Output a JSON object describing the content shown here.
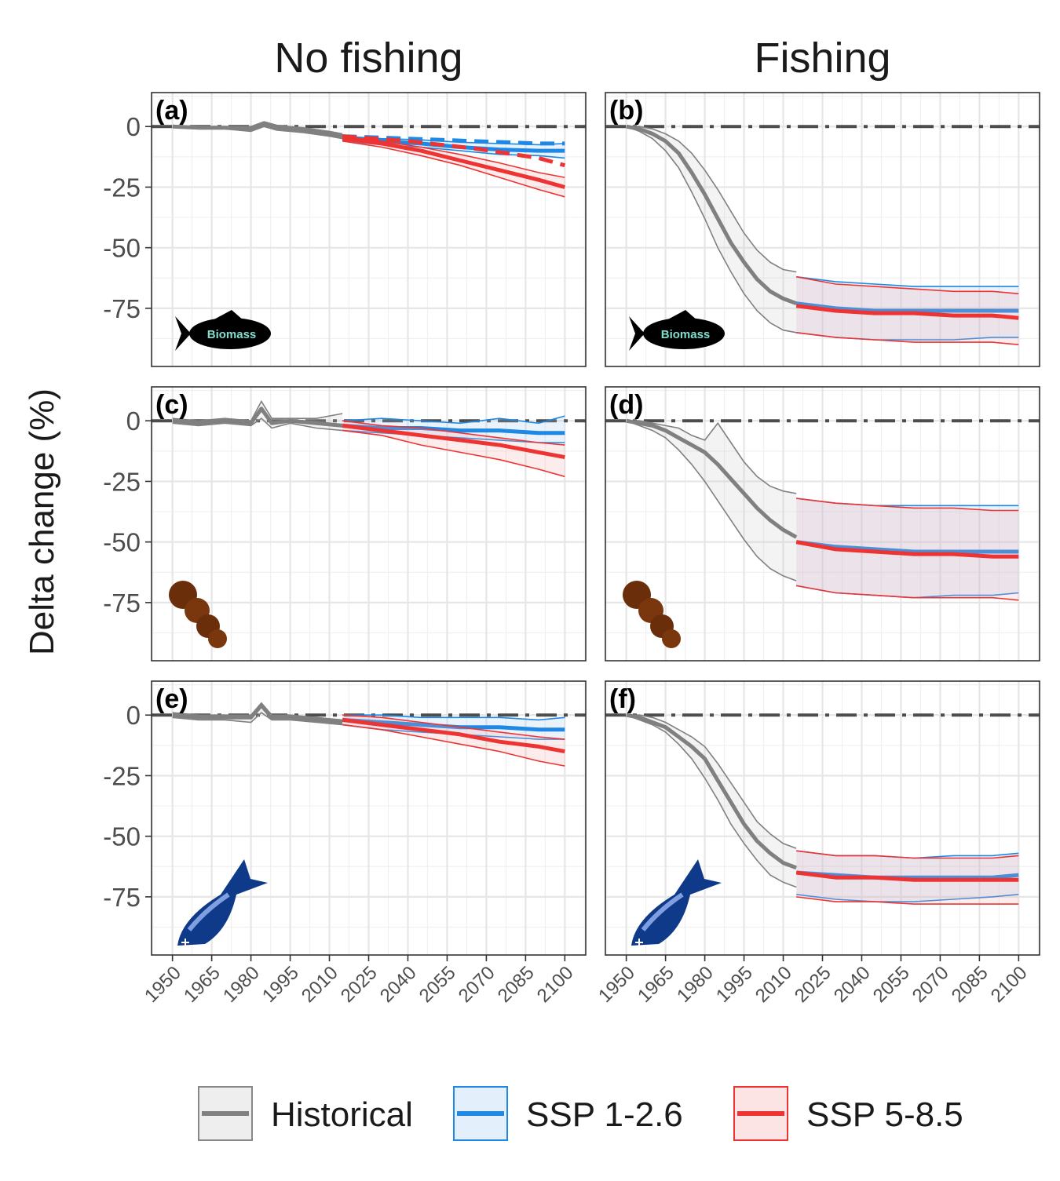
{
  "column_titles": [
    "No fishing",
    "Fishing"
  ],
  "ylabel": "Delta change (%)",
  "legend": {
    "position": "bottom",
    "items": [
      {
        "label": "Historical",
        "line": "#808080",
        "fill": "#eeeeee"
      },
      {
        "label": "SSP 1-2.6",
        "line": "#1e88e5",
        "fill": "#e3f0fc"
      },
      {
        "label": "SSP 5-8.5",
        "line": "#ee3333",
        "fill": "#fde4e4"
      }
    ]
  },
  "icon_text": "Biomass",
  "chart_data": {
    "type": "line",
    "grid": true,
    "x_ticks": [
      1950,
      1965,
      1980,
      1995,
      2010,
      2025,
      2040,
      2055,
      2070,
      2085,
      2100
    ],
    "y_ticks": [
      0,
      -25,
      -50,
      -75
    ],
    "y_tick_labels": [
      "0",
      "-25",
      "-50",
      "-75"
    ],
    "xlim": [
      1942,
      2108
    ],
    "ylim": [
      -99,
      14
    ],
    "reference_line": 0,
    "panels": [
      {
        "label": "(a)",
        "column": 0,
        "row": 0,
        "icon": "fish-silhouette-icon",
        "historical": {
          "x": [
            1950,
            1960,
            1970,
            1980,
            1985,
            1990,
            2000,
            2010,
            2015
          ],
          "mean": [
            0,
            -0.5,
            -0.5,
            -1,
            1,
            -0.5,
            -1.5,
            -3,
            -4
          ],
          "lower": [
            0,
            -1,
            -1,
            -2,
            0,
            -1.5,
            -2.5,
            -4,
            -5
          ],
          "upper": [
            0,
            0,
            0,
            0,
            2,
            0.5,
            -0.5,
            -2,
            -3
          ]
        },
        "ssp126": {
          "x": [
            2015,
            2030,
            2045,
            2060,
            2075,
            2090,
            2100
          ],
          "mean": [
            -5,
            -6,
            -7,
            -8.5,
            -9.5,
            -10,
            -10
          ],
          "lower": [
            -6,
            -7.5,
            -8.5,
            -10,
            -11.5,
            -12,
            -13
          ],
          "upper": [
            -4,
            -5,
            -5.5,
            -6.5,
            -7,
            -7.5,
            -7
          ],
          "dashed_x": [
            2015,
            2040,
            2065,
            2090,
            2100
          ],
          "dashed": [
            -4,
            -5,
            -6,
            -7,
            -7
          ]
        },
        "ssp585": {
          "x": [
            2015,
            2030,
            2045,
            2060,
            2075,
            2090,
            2100
          ],
          "mean": [
            -5,
            -7,
            -10,
            -14,
            -18,
            -22,
            -25
          ],
          "lower": [
            -6,
            -8.5,
            -12,
            -16,
            -21,
            -26,
            -29
          ],
          "upper": [
            -4,
            -6,
            -8.5,
            -11.5,
            -15,
            -19,
            -21
          ],
          "dashed_x": [
            2015,
            2040,
            2065,
            2090,
            2100
          ],
          "dashed": [
            -4,
            -6,
            -9,
            -13,
            -16
          ]
        }
      },
      {
        "label": "(b)",
        "column": 1,
        "row": 0,
        "icon": "fish-silhouette-icon",
        "historical": {
          "x": [
            1950,
            1955,
            1960,
            1965,
            1970,
            1975,
            1980,
            1985,
            1990,
            1995,
            2000,
            2005,
            2010,
            2015
          ],
          "mean": [
            0,
            -1,
            -3,
            -6,
            -11,
            -19,
            -28,
            -38,
            -48,
            -56,
            -63,
            -68,
            -71,
            -73
          ],
          "lower": [
            0,
            -2,
            -5,
            -10,
            -17,
            -27,
            -38,
            -50,
            -60,
            -69,
            -76,
            -81,
            -84,
            -85
          ],
          "upper": [
            0,
            0,
            -1,
            -3,
            -6,
            -11,
            -18,
            -26,
            -35,
            -44,
            -51,
            -56,
            -59,
            -60
          ]
        },
        "ssp126": {
          "x": [
            2015,
            2030,
            2045,
            2060,
            2075,
            2090,
            2100
          ],
          "mean": [
            -73,
            -75,
            -76,
            -76,
            -76,
            -76,
            -76
          ],
          "lower": [
            -85,
            -87,
            -88,
            -88,
            -88,
            -87,
            -87
          ],
          "upper": [
            -62,
            -64,
            -65,
            -66,
            -66,
            -66,
            -66
          ]
        },
        "ssp585": {
          "x": [
            2015,
            2030,
            2045,
            2060,
            2075,
            2090,
            2100
          ],
          "mean": [
            -74,
            -76,
            -77,
            -77,
            -78,
            -78,
            -79
          ],
          "lower": [
            -85,
            -87,
            -88,
            -89,
            -89,
            -89,
            -90
          ],
          "upper": [
            -62,
            -65,
            -66,
            -67,
            -68,
            -68,
            -69
          ]
        }
      },
      {
        "label": "(c)",
        "column": 0,
        "row": 1,
        "icon": "brown-blob-icon",
        "historical": {
          "x": [
            1950,
            1960,
            1970,
            1980,
            1984,
            1988,
            1995,
            2005,
            2015
          ],
          "mean": [
            0,
            -1,
            0,
            -1,
            5,
            -1,
            0,
            -1,
            -2
          ],
          "lower": [
            -1,
            -2,
            -1,
            -2,
            1,
            -3,
            -1,
            -3,
            -4
          ],
          "upper": [
            1,
            0,
            1,
            0,
            8,
            1,
            1,
            1,
            3
          ]
        },
        "ssp126": {
          "x": [
            2015,
            2030,
            2045,
            2060,
            2075,
            2090,
            2100
          ],
          "mean": [
            -2,
            -3,
            -3,
            -4,
            -4,
            -5,
            -5
          ],
          "lower": [
            -4,
            -5,
            -6,
            -7,
            -8,
            -9,
            -9
          ],
          "upper": [
            0,
            1,
            0,
            -1,
            1,
            -1,
            2
          ]
        },
        "ssp585": {
          "x": [
            2015,
            2030,
            2045,
            2060,
            2075,
            2090,
            2100
          ],
          "mean": [
            -2,
            -4,
            -6,
            -8,
            -10,
            -13,
            -15
          ],
          "lower": [
            -4,
            -6,
            -10,
            -13,
            -16,
            -20,
            -23
          ],
          "upper": [
            0,
            -2,
            -3,
            -5,
            -7,
            -9,
            -10
          ]
        }
      },
      {
        "label": "(d)",
        "column": 1,
        "row": 1,
        "icon": "brown-blob-icon",
        "historical": {
          "x": [
            1950,
            1955,
            1960,
            1965,
            1970,
            1975,
            1980,
            1985,
            1990,
            1995,
            2000,
            2005,
            2010,
            2015
          ],
          "mean": [
            0,
            -1,
            -2,
            -4,
            -7,
            -10,
            -13,
            -18,
            -24,
            -30,
            -36,
            -41,
            -45,
            -48
          ],
          "lower": [
            0,
            -2,
            -4,
            -7,
            -12,
            -18,
            -25,
            -33,
            -41,
            -49,
            -56,
            -61,
            -64,
            -66
          ],
          "upper": [
            0,
            0,
            -1,
            -2,
            -3,
            -6,
            -8,
            -1,
            -9,
            -17,
            -23,
            -27,
            -29,
            -30
          ]
        },
        "ssp126": {
          "x": [
            2015,
            2030,
            2045,
            2060,
            2075,
            2090,
            2100
          ],
          "mean": [
            -50,
            -52,
            -53,
            -54,
            -54,
            -54,
            -54
          ],
          "lower": [
            -68,
            -71,
            -72,
            -73,
            -72,
            -72,
            -71
          ],
          "upper": [
            -32,
            -34,
            -35,
            -35,
            -35,
            -35,
            -35
          ]
        },
        "ssp585": {
          "x": [
            2015,
            2030,
            2045,
            2060,
            2075,
            2090,
            2100
          ],
          "mean": [
            -50,
            -53,
            -54,
            -55,
            -55,
            -56,
            -56
          ],
          "lower": [
            -68,
            -71,
            -72,
            -73,
            -73,
            -73,
            -74
          ],
          "upper": [
            -32,
            -34,
            -35,
            -36,
            -36,
            -37,
            -37
          ]
        }
      },
      {
        "label": "(e)",
        "column": 0,
        "row": 2,
        "icon": "blue-fish-icon",
        "historical": {
          "x": [
            1950,
            1960,
            1970,
            1980,
            1984,
            1988,
            1995,
            2005,
            2015
          ],
          "mean": [
            0,
            -1,
            -1,
            -1,
            4,
            -1,
            -1,
            -2,
            -3
          ],
          "lower": [
            -1,
            -2,
            -2,
            -3,
            1,
            -2,
            -2,
            -3,
            -4
          ],
          "upper": [
            1,
            0,
            0,
            0,
            5,
            0,
            0,
            -1,
            -2
          ]
        },
        "ssp126": {
          "x": [
            2015,
            2030,
            2045,
            2060,
            2075,
            2090,
            2100
          ],
          "mean": [
            -2,
            -3,
            -4,
            -5,
            -5,
            -6,
            -6
          ],
          "lower": [
            -4,
            -6,
            -7,
            -8,
            -9,
            -10,
            -10
          ],
          "upper": [
            0,
            0,
            -1,
            -1,
            -1,
            -2,
            -1
          ]
        },
        "ssp585": {
          "x": [
            2015,
            2030,
            2045,
            2060,
            2075,
            2090,
            2100
          ],
          "mean": [
            -2,
            -4,
            -6,
            -8,
            -11,
            -13,
            -15
          ],
          "lower": [
            -4,
            -6,
            -9,
            -12,
            -15,
            -19,
            -21
          ],
          "upper": [
            0,
            -1,
            -3,
            -5,
            -7,
            -9,
            -10
          ]
        }
      },
      {
        "label": "(f)",
        "column": 1,
        "row": 2,
        "icon": "blue-fish-icon",
        "historical": {
          "x": [
            1950,
            1955,
            1960,
            1965,
            1970,
            1975,
            1980,
            1985,
            1990,
            1995,
            2000,
            2005,
            2010,
            2015
          ],
          "mean": [
            0,
            -1,
            -3,
            -5,
            -9,
            -13,
            -18,
            -27,
            -36,
            -45,
            -52,
            -57,
            -61,
            -63
          ],
          "lower": [
            0,
            -2,
            -4,
            -7,
            -12,
            -18,
            -26,
            -35,
            -45,
            -53,
            -60,
            -66,
            -69,
            -71
          ],
          "upper": [
            0,
            0,
            -1,
            -3,
            -6,
            -9,
            -13,
            -20,
            -28,
            -36,
            -44,
            -49,
            -53,
            -55
          ]
        },
        "ssp126": {
          "x": [
            2015,
            2030,
            2045,
            2060,
            2075,
            2090,
            2100
          ],
          "mean": [
            -65,
            -66,
            -67,
            -67,
            -67,
            -67,
            -66
          ],
          "lower": [
            -74,
            -76,
            -77,
            -77,
            -76,
            -75,
            -74
          ],
          "upper": [
            -56,
            -58,
            -58,
            -59,
            -58,
            -58,
            -57
          ]
        },
        "ssp585": {
          "x": [
            2015,
            2030,
            2045,
            2060,
            2075,
            2090,
            2100
          ],
          "mean": [
            -65,
            -67,
            -67,
            -68,
            -68,
            -68,
            -68
          ],
          "lower": [
            -75,
            -77,
            -77,
            -78,
            -78,
            -78,
            -78
          ],
          "upper": [
            -56,
            -58,
            -58,
            -59,
            -59,
            -59,
            -58
          ]
        }
      }
    ]
  }
}
